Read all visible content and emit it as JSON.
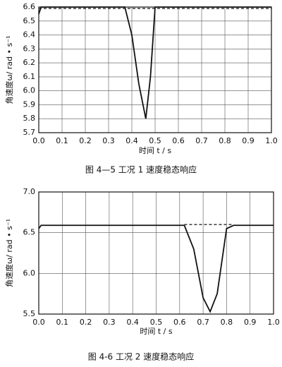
{
  "chart_data": [
    {
      "type": "line",
      "caption": "图 4—5 工况 1 速度稳态响应",
      "xlabel": "时间 t / s",
      "ylabel": "角速度ω/ rad • s⁻¹",
      "x": [
        0,
        0.01,
        0.1,
        0.2,
        0.3,
        0.37,
        0.4,
        0.43,
        0.46,
        0.48,
        0.5,
        0.51,
        0.6,
        0.7,
        0.8,
        0.9,
        1.0
      ],
      "series": [
        {
          "color": "#111111",
          "dashed": false,
          "values": [
            6.55,
            6.6,
            6.6,
            6.6,
            6.6,
            6.6,
            6.4,
            6.05,
            5.8,
            6.1,
            6.6,
            6.6,
            6.6,
            6.6,
            6.6,
            6.6,
            6.6
          ]
        },
        {
          "color": "#111111",
          "dashed": true,
          "values": [
            6.59,
            6.59,
            6.59,
            6.59,
            6.59,
            6.59,
            6.59,
            6.59,
            6.59,
            6.59,
            6.59,
            6.59,
            6.59,
            6.59,
            6.59,
            6.59,
            6.59
          ]
        }
      ],
      "xlim": [
        0,
        1
      ],
      "xticks": [
        {
          "value": 0,
          "label": "0.0"
        },
        0.1,
        0.2,
        0.3,
        0.4,
        0.5,
        0.6,
        0.7,
        0.8,
        0.9,
        {
          "value": 1,
          "label": "1.0"
        }
      ],
      "ylim": [
        5.7,
        6.6
      ],
      "yticks": [
        5.7,
        5.8,
        5.9,
        {
          "value": 6,
          "label": "6.0"
        },
        6.1,
        6.2,
        6.3,
        6.4,
        6.5,
        6.6
      ],
      "grid": true
    },
    {
      "type": "line",
      "caption": "图 4-6 工况 2 速度稳态响应",
      "xlabel": "时间 t / s",
      "ylabel": "角速度ω/ rad • s⁻¹",
      "x": [
        0,
        0.01,
        0.1,
        0.2,
        0.3,
        0.4,
        0.5,
        0.6,
        0.62,
        0.66,
        0.7,
        0.73,
        0.76,
        0.8,
        0.83,
        0.9,
        1.0
      ],
      "series": [
        {
          "color": "#111111",
          "dashed": false,
          "values": [
            6.55,
            6.59,
            6.59,
            6.59,
            6.59,
            6.59,
            6.59,
            6.59,
            6.59,
            6.3,
            5.7,
            5.53,
            5.75,
            6.55,
            6.59,
            6.59,
            6.59
          ]
        },
        {
          "color": "#111111",
          "dashed": true,
          "values": [
            null,
            null,
            null,
            null,
            null,
            null,
            null,
            null,
            6.6,
            6.6,
            6.6,
            6.6,
            6.6,
            6.6,
            6.6,
            null,
            null
          ]
        }
      ],
      "xlim": [
        0,
        1
      ],
      "xticks": [
        {
          "value": 0,
          "label": "0.0"
        },
        0.1,
        0.2,
        0.3,
        0.4,
        0.5,
        0.6,
        0.7,
        0.8,
        0.9,
        {
          "value": 1,
          "label": "1.0"
        }
      ],
      "ylim": [
        5.5,
        7.0
      ],
      "yticks": [
        5.5,
        {
          "value": 6,
          "label": "6.0"
        },
        6.5,
        {
          "value": 7,
          "label": "7.0"
        }
      ],
      "grid": true
    }
  ]
}
